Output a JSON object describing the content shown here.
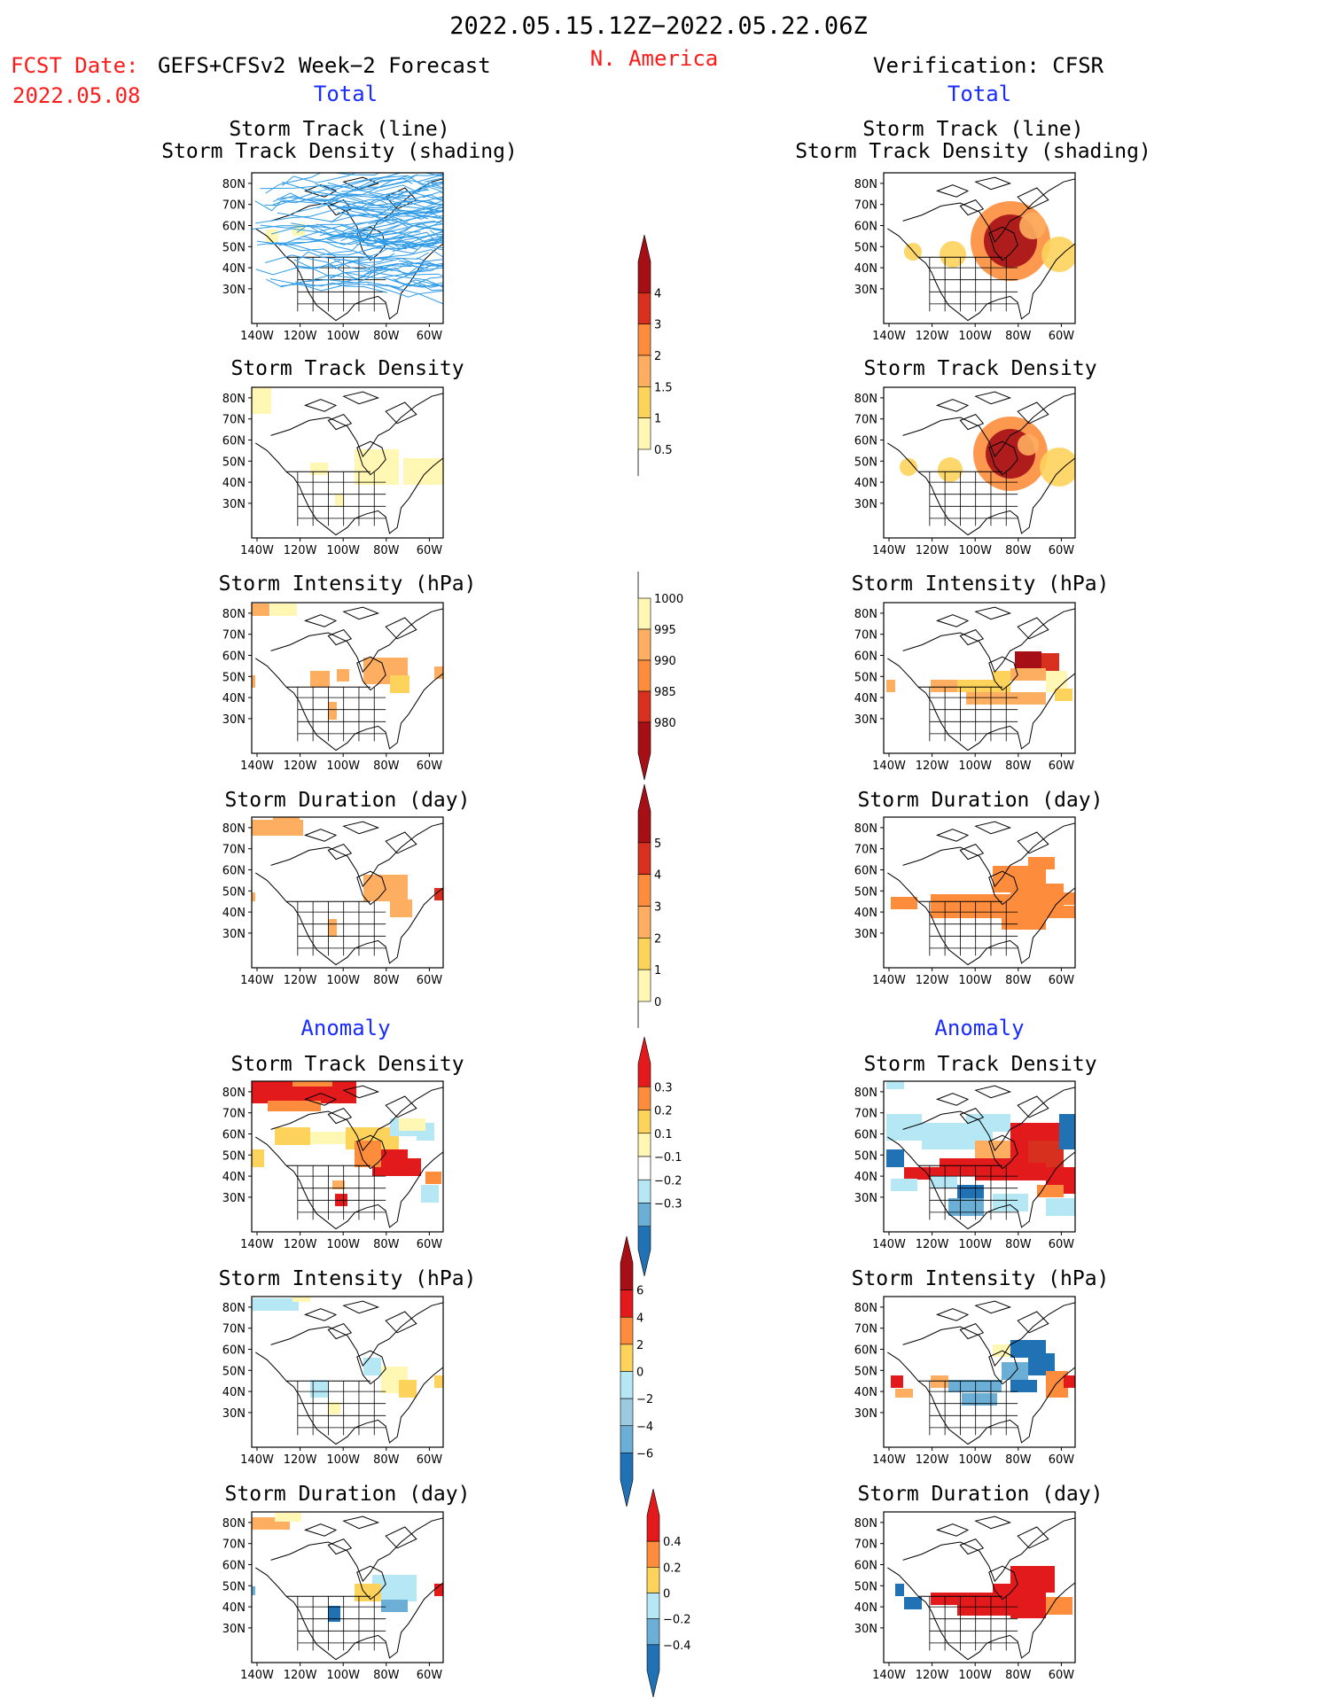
{
  "header": {
    "period": "2022.05.15.12Z−2022.05.22.06Z",
    "fcst_label": "FCST Date:",
    "fcst_date": "2022.05.08",
    "model": "GEFS+CFSv2 Week−2 Forecast",
    "region": "N. America",
    "verification": "Verification: CFSR"
  },
  "sections": {
    "total_left": "Total",
    "total_right": "Total",
    "anomaly_left": "Anomaly",
    "anomaly_right": "Anomaly"
  },
  "axis": {
    "lat_ticks": [
      "80N",
      "70N",
      "60N",
      "50N",
      "40N",
      "30N"
    ],
    "lon_ticks": [
      "140W",
      "120W",
      "100W",
      "80W",
      "60W"
    ]
  },
  "panels": [
    {
      "id": "fc-track",
      "title1": "Storm Track (line)",
      "title2": "Storm Track Density (shading)",
      "tracks": true,
      "cells": [
        [
          235,
          165,
          18,
          18,
          "#fff7b3"
        ],
        [
          300,
          262,
          14,
          14,
          "#fff7b3"
        ],
        [
          330,
          255,
          14,
          14,
          "#fff7b3"
        ]
      ]
    },
    {
      "id": "vf-track",
      "title1": "Storm Track (line)",
      "title2": "Storm Track Density (shading)",
      "tracks": false,
      "blobs": [
        [
          1140,
          275,
          30,
          "#a50f15"
        ],
        [
          1140,
          275,
          45,
          "#fd8d3c"
        ],
        [
          1195,
          290,
          20,
          "#fdd35b"
        ],
        [
          1075,
          290,
          15,
          "#fdd35b"
        ],
        [
          1030,
          287,
          10,
          "#fdd35b"
        ],
        [
          1165,
          258,
          15,
          "#fdae61"
        ]
      ]
    },
    {
      "id": "fc-density",
      "title1": "Storm Track Density",
      "cells": [
        [
          236,
          440,
          70,
          30,
          "#fff7b3"
        ],
        [
          400,
          510,
          50,
          40,
          "#fff7b3"
        ],
        [
          455,
          520,
          45,
          30,
          "#fff7b3"
        ],
        [
          350,
          525,
          20,
          14,
          "#fff7b3"
        ],
        [
          378,
          560,
          10,
          14,
          "#fff7b3"
        ]
      ]
    },
    {
      "id": "vf-density",
      "title1": "Storm Track Density",
      "blobs": [
        [
          1140,
          515,
          28,
          "#a50f15"
        ],
        [
          1140,
          515,
          42,
          "#fd8d3c"
        ],
        [
          1195,
          530,
          22,
          "#fdd35b"
        ],
        [
          1072,
          533,
          14,
          "#fdd35b"
        ],
        [
          1025,
          530,
          10,
          "#fdd35b"
        ],
        [
          1160,
          505,
          12,
          "#fdae61"
        ]
      ]
    },
    {
      "id": "fc-intensity",
      "title1": "Storm Intensity (hPa)",
      "cells": [
        [
          282,
          684,
          22,
          14,
          "#fdae61"
        ],
        [
          305,
          684,
          30,
          14,
          "#fff7b3"
        ],
        [
          350,
          760,
          22,
          18,
          "#fdae61"
        ],
        [
          380,
          758,
          14,
          14,
          "#fdae61"
        ],
        [
          410,
          745,
          50,
          30,
          "#fdae61"
        ],
        [
          440,
          765,
          22,
          20,
          "#fdd35b"
        ],
        [
          490,
          755,
          10,
          14,
          "#fdae61"
        ],
        [
          370,
          795,
          10,
          20,
          "#fdae61"
        ],
        [
          282,
          765,
          6,
          14,
          "#fdae61"
        ]
      ]
    },
    {
      "id": "vf-intensity",
      "title1": "Storm Intensity (hPa)",
      "cells": [
        [
          1145,
          738,
          30,
          20,
          "#a50f15"
        ],
        [
          1175,
          740,
          20,
          30,
          "#d7301f"
        ],
        [
          1140,
          757,
          40,
          14,
          "#fdae61"
        ],
        [
          1080,
          770,
          60,
          14,
          "#fdd35b"
        ],
        [
          1050,
          770,
          30,
          14,
          "#fdae61"
        ],
        [
          1000,
          770,
          10,
          14,
          "#fdae61"
        ],
        [
          1090,
          784,
          90,
          14,
          "#fdae61"
        ],
        [
          1180,
          760,
          24,
          24,
          "#fff7b3"
        ],
        [
          1190,
          780,
          20,
          14,
          "#fdd35b"
        ],
        [
          1120,
          760,
          20,
          14,
          "#fdd35b"
        ]
      ]
    },
    {
      "id": "fc-duration",
      "title1": "Storm Duration (day)",
      "cells": [
        [
          282,
          928,
          60,
          18,
          "#fdae61"
        ],
        [
          308,
          920,
          30,
          10,
          "#fdae61"
        ],
        [
          410,
          990,
          50,
          30,
          "#fdae61"
        ],
        [
          440,
          1018,
          25,
          20,
          "#fdae61"
        ],
        [
          490,
          1005,
          10,
          14,
          "#d7301f"
        ],
        [
          370,
          1040,
          10,
          20,
          "#fdae61"
        ],
        [
          282,
          1010,
          6,
          10,
          "#fdae61"
        ]
      ]
    },
    {
      "id": "vf-duration",
      "title1": "Storm Duration (day)",
      "cells": [
        [
          1120,
          980,
          60,
          30,
          "#fd8d3c"
        ],
        [
          1160,
          970,
          30,
          14,
          "#fd8d3c"
        ],
        [
          1140,
          1000,
          60,
          25,
          "#fd8d3c"
        ],
        [
          1050,
          1012,
          100,
          14,
          "#fd8d3c"
        ],
        [
          1050,
          1025,
          180,
          14,
          "#fd8d3c"
        ],
        [
          1005,
          1015,
          30,
          14,
          "#fd8d3c"
        ],
        [
          1200,
          1010,
          30,
          14,
          "#fd8d3c"
        ],
        [
          1130,
          1038,
          50,
          14,
          "#fd8d3c"
        ]
      ]
    },
    {
      "id": "fc-anom-density",
      "title1": "Storm Track Density",
      "cells": [
        [
          282,
          1218,
          120,
          30,
          "#e31a1c"
        ],
        [
          330,
          1215,
          45,
          14,
          "#fd8d3c"
        ],
        [
          302,
          1245,
          60,
          12,
          "#fd8d3c"
        ],
        [
          310,
          1275,
          40,
          20,
          "#fdd35b"
        ],
        [
          350,
          1280,
          40,
          14,
          "#fff7b3"
        ],
        [
          390,
          1275,
          60,
          25,
          "#fdd35b"
        ],
        [
          420,
          1300,
          40,
          30,
          "#e31a1c"
        ],
        [
          400,
          1290,
          30,
          30,
          "#fd8d3c"
        ],
        [
          455,
          1310,
          20,
          20,
          "#e31a1c"
        ],
        [
          480,
          1325,
          18,
          14,
          "#fd8d3c"
        ],
        [
          475,
          1340,
          20,
          20,
          "#b6e7f5"
        ],
        [
          440,
          1265,
          40,
          20,
          "#b6e7f5"
        ],
        [
          470,
          1270,
          20,
          20,
          "#b6e7f5"
        ],
        [
          378,
          1350,
          14,
          14,
          "#e31a1c"
        ],
        [
          375,
          1335,
          14,
          10,
          "#fdae61"
        ],
        [
          282,
          1300,
          16,
          20,
          "#fdd35b"
        ],
        [
          450,
          1265,
          30,
          14,
          "#fff7b3"
        ]
      ]
    },
    {
      "id": "vf-anom-density",
      "title1": "Storm Track Density",
      "cells": [
        [
          1000,
          1218,
          20,
          14,
          "#b6e7f5"
        ],
        [
          1000,
          1260,
          40,
          30,
          "#b6e7f5"
        ],
        [
          1040,
          1270,
          80,
          30,
          "#b6e7f5"
        ],
        [
          1090,
          1260,
          50,
          20,
          "#b6e7f5"
        ],
        [
          1100,
          1290,
          50,
          20,
          "#fdae61"
        ],
        [
          1140,
          1270,
          60,
          50,
          "#e31a1c"
        ],
        [
          1160,
          1290,
          40,
          40,
          "#d7301f"
        ],
        [
          1195,
          1260,
          30,
          40,
          "#2171b5"
        ],
        [
          1060,
          1310,
          80,
          20,
          "#e31a1c"
        ],
        [
          1020,
          1320,
          40,
          14,
          "#e31a1c"
        ],
        [
          1000,
          1300,
          20,
          20,
          "#2171b5"
        ],
        [
          1100,
          1315,
          80,
          20,
          "#e31a1c"
        ],
        [
          1180,
          1320,
          40,
          30,
          "#e31a1c"
        ],
        [
          1080,
          1340,
          30,
          30,
          "#2171b5"
        ],
        [
          1070,
          1355,
          40,
          20,
          "#6baed6"
        ],
        [
          1120,
          1350,
          40,
          20,
          "#b6e7f5"
        ],
        [
          1180,
          1355,
          40,
          20,
          "#b6e7f5"
        ],
        [
          1170,
          1340,
          30,
          14,
          "#fd8d3c"
        ],
        [
          1005,
          1333,
          30,
          14,
          "#b6e7f5"
        ],
        [
          1050,
          1330,
          30,
          14,
          "#b6e7f5"
        ]
      ]
    },
    {
      "id": "fc-anom-intensity",
      "title1": "Storm Intensity (hPa)",
      "cells": [
        [
          282,
          1468,
          55,
          14,
          "#b6e7f5"
        ],
        [
          330,
          1462,
          20,
          10,
          "#fff7b3"
        ],
        [
          410,
          1535,
          20,
          20,
          "#b6e7f5"
        ],
        [
          430,
          1545,
          30,
          30,
          "#fff7b3"
        ],
        [
          450,
          1560,
          20,
          20,
          "#fdd35b"
        ],
        [
          350,
          1560,
          20,
          20,
          "#b6e7f5"
        ],
        [
          490,
          1555,
          10,
          14,
          "#fdd35b"
        ],
        [
          370,
          1585,
          14,
          14,
          "#fff7b3"
        ]
      ]
    },
    {
      "id": "vf-anom-intensity",
      "title1": "Storm Intensity (hPa)",
      "cells": [
        [
          1140,
          1515,
          40,
          20,
          "#2171b5"
        ],
        [
          1160,
          1530,
          30,
          25,
          "#2171b5"
        ],
        [
          1130,
          1540,
          30,
          20,
          "#6baed6"
        ],
        [
          1120,
          1520,
          20,
          14,
          "#fff7b3"
        ],
        [
          1050,
          1555,
          20,
          14,
          "#fdae61"
        ],
        [
          1070,
          1560,
          60,
          14,
          "#6baed6"
        ],
        [
          1140,
          1560,
          30,
          14,
          "#2171b5"
        ],
        [
          1180,
          1550,
          25,
          30,
          "#fd8d3c"
        ],
        [
          1200,
          1555,
          14,
          14,
          "#e31a1c"
        ],
        [
          1005,
          1555,
          14,
          14,
          "#e31a1c"
        ],
        [
          1010,
          1570,
          20,
          10,
          "#fdae61"
        ],
        [
          1085,
          1575,
          40,
          14,
          "#6baed6"
        ]
      ]
    },
    {
      "id": "fc-anom-duration",
      "title1": "Storm Duration (day)",
      "cells": [
        [
          282,
          1715,
          45,
          14,
          "#fdae61"
        ],
        [
          310,
          1710,
          30,
          10,
          "#fff7b3"
        ],
        [
          420,
          1780,
          50,
          30,
          "#b6e7f5"
        ],
        [
          400,
          1790,
          30,
          20,
          "#fdd35b"
        ],
        [
          430,
          1808,
          30,
          14,
          "#6baed6"
        ],
        [
          490,
          1790,
          10,
          14,
          "#e31a1c"
        ],
        [
          370,
          1815,
          14,
          18,
          "#2171b5"
        ],
        [
          282,
          1793,
          6,
          10,
          "#6baed6"
        ]
      ]
    },
    {
      "id": "vf-anom-duration",
      "title1": "Storm Duration (day)",
      "cells": [
        [
          1140,
          1770,
          50,
          30,
          "#e31a1c"
        ],
        [
          1120,
          1790,
          60,
          30,
          "#e31a1c"
        ],
        [
          1160,
          1780,
          30,
          14,
          "#e31a1c"
        ],
        [
          1180,
          1805,
          30,
          20,
          "#fd8d3c"
        ],
        [
          1050,
          1800,
          80,
          14,
          "#e31a1c"
        ],
        [
          1020,
          1805,
          20,
          14,
          "#2171b5"
        ],
        [
          1010,
          1790,
          10,
          14,
          "#2171b5"
        ],
        [
          1080,
          1812,
          60,
          14,
          "#e31a1c"
        ],
        [
          1140,
          1815,
          40,
          14,
          "#e31a1c"
        ]
      ]
    }
  ],
  "colorbars": [
    {
      "id": "cb-density",
      "labels": [
        "4",
        "3",
        "2",
        "1.5",
        "1",
        "0.5"
      ],
      "colors": [
        "#a50f15",
        "#d7301f",
        "#fd8d3c",
        "#fdae61",
        "#fdd35b",
        "#fff7b3"
      ],
      "shape": "top",
      "style": "warm"
    },
    {
      "id": "cb-intensity",
      "labels": [
        "1000",
        "995",
        "990",
        "985",
        "980"
      ],
      "colors": [
        "#fff7b3",
        "#fdae61",
        "#fd8d3c",
        "#d7301f",
        "#a50f15"
      ],
      "shape": "bottom",
      "style": "warm"
    },
    {
      "id": "cb-duration",
      "labels": [
        "5",
        "4",
        "3",
        "2",
        "1",
        "0"
      ],
      "colors": [
        "#a50f15",
        "#d7301f",
        "#fd8d3c",
        "#fdae61",
        "#fdd35b",
        "#fff7b3"
      ],
      "shape": "top",
      "style": "warm"
    },
    {
      "id": "cb-anom-density",
      "labels": [
        "0.3",
        "0.2",
        "0.1",
        "−0.1",
        "−0.2",
        "−0.3"
      ],
      "colors": [
        "#e31a1c",
        "#fd8d3c",
        "#fdd35b",
        "#fff7b3",
        "#ffffff",
        "#b6e7f5",
        "#6baed6",
        "#2171b5"
      ],
      "shape": "both",
      "style": "div"
    },
    {
      "id": "cb-anom-intensity",
      "labels": [
        "6",
        "4",
        "2",
        "0",
        "−2",
        "−4",
        "−6"
      ],
      "colors": [
        "#a50f15",
        "#e31a1c",
        "#fd8d3c",
        "#fdd35b",
        "#b6e7f5",
        "#9ecae1",
        "#6baed6",
        "#2171b5"
      ],
      "shape": "both",
      "style": "div"
    },
    {
      "id": "cb-anom-duration",
      "labels": [
        "0.4",
        "0.2",
        "0",
        "−0.2",
        "−0.4"
      ],
      "colors": [
        "#e31a1c",
        "#fd8d3c",
        "#fdd35b",
        "#b6e7f5",
        "#6baed6",
        "#2171b5"
      ],
      "shape": "both",
      "style": "div"
    }
  ]
}
